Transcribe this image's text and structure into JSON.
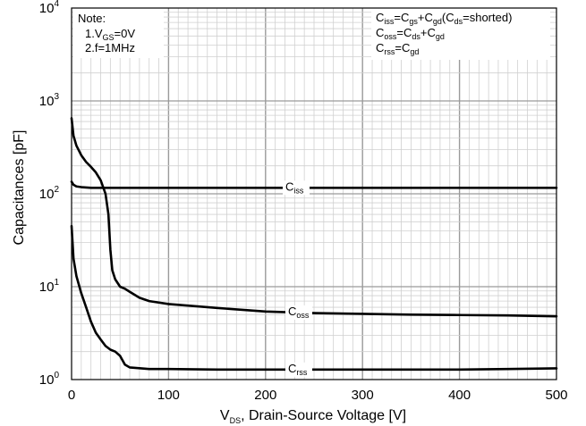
{
  "chart_data": {
    "type": "line",
    "xlabel": {
      "main": "V",
      "sub": "DS",
      "rest": ", Drain-Source Voltage [V]"
    },
    "ylabel": "Capacitances [pF]",
    "xlim": [
      0,
      500
    ],
    "ylim": [
      1,
      10000
    ],
    "yscale": "log",
    "grid": true,
    "x_ticks": [
      "0",
      "100",
      "200",
      "300",
      "400",
      "500"
    ],
    "y_ticks": [
      {
        "base": "10",
        "exp": "0"
      },
      {
        "base": "10",
        "exp": "1"
      },
      {
        "base": "10",
        "exp": "2"
      },
      {
        "base": "10",
        "exp": "3"
      },
      {
        "base": "10",
        "exp": "4"
      }
    ],
    "note": {
      "title": "Note:",
      "line1": {
        "pre": "1.V",
        "sub": "GS",
        "post": "=0V"
      },
      "line2": "2.f=1MHz"
    },
    "formulas": [
      {
        "parts": [
          [
            "C",
            ""
          ],
          [
            "iss",
            "s"
          ],
          [
            "=C",
            ""
          ],
          [
            "gs",
            "s"
          ],
          [
            "+C",
            ""
          ],
          [
            "gd",
            "s"
          ],
          [
            "(C",
            ""
          ],
          [
            "ds",
            "s"
          ],
          [
            "=shorted)",
            ""
          ]
        ]
      },
      {
        "parts": [
          [
            "C",
            ""
          ],
          [
            "oss",
            "s"
          ],
          [
            "=C",
            ""
          ],
          [
            "ds",
            "s"
          ],
          [
            "+C",
            ""
          ],
          [
            "gd",
            "s"
          ]
        ]
      },
      {
        "parts": [
          [
            "C",
            ""
          ],
          [
            "rss",
            "s"
          ],
          [
            "=C",
            ""
          ],
          [
            "gd",
            "s"
          ]
        ]
      }
    ],
    "series": [
      {
        "name": "Ciss",
        "label_main": "C",
        "label_sub": "iss",
        "x": [
          0,
          2,
          5,
          10,
          20,
          50,
          100,
          200,
          300,
          400,
          500
        ],
        "y": [
          135,
          125,
          120,
          118,
          116,
          116,
          116,
          116,
          116,
          116,
          116
        ]
      },
      {
        "name": "Coss",
        "label_main": "C",
        "label_sub": "oss",
        "x": [
          0,
          2,
          5,
          10,
          15,
          20,
          25,
          30,
          35,
          38,
          40,
          42,
          45,
          50,
          55,
          60,
          70,
          80,
          100,
          150,
          200,
          250,
          300,
          350,
          400,
          450,
          500
        ],
        "y": [
          650,
          420,
          330,
          260,
          220,
          195,
          170,
          140,
          100,
          60,
          25,
          15,
          12,
          10,
          9.5,
          8.8,
          7.6,
          7.0,
          6.5,
          5.9,
          5.4,
          5.2,
          5.1,
          5.0,
          4.95,
          4.9,
          4.8
        ]
      },
      {
        "name": "Crss",
        "label_main": "C",
        "label_sub": "rss",
        "x": [
          0,
          2,
          5,
          10,
          15,
          20,
          25,
          30,
          35,
          40,
          45,
          50,
          55,
          60,
          80,
          100,
          150,
          200,
          250,
          300,
          350,
          400,
          450,
          500
        ],
        "y": [
          45,
          20,
          13,
          8.5,
          6,
          4.2,
          3.2,
          2.7,
          2.3,
          2.1,
          2.0,
          1.8,
          1.45,
          1.35,
          1.3,
          1.3,
          1.28,
          1.28,
          1.28,
          1.28,
          1.28,
          1.28,
          1.3,
          1.32
        ]
      }
    ]
  }
}
